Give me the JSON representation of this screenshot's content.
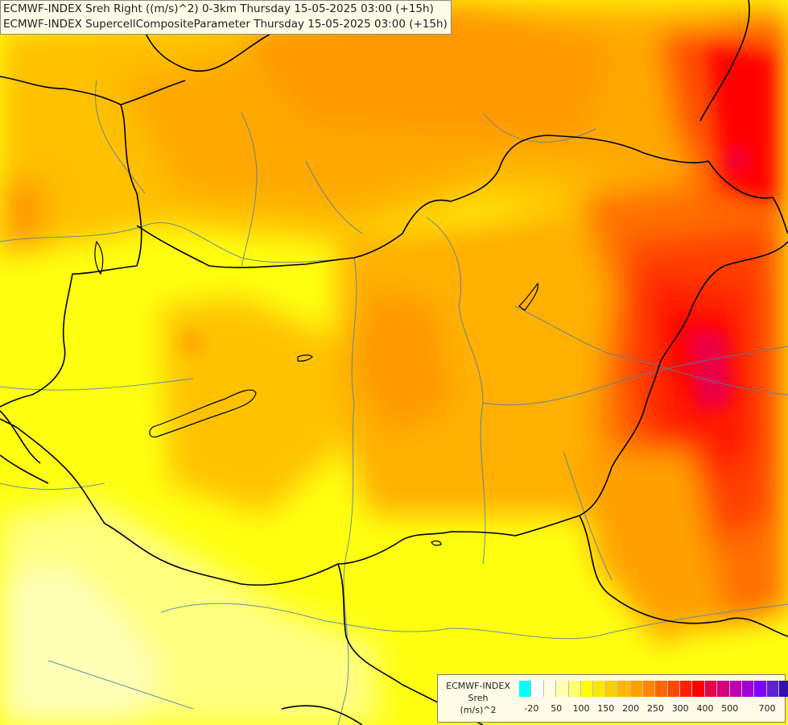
{
  "title_lines": [
    "ECMWF-INDEX Sreh Right ((m/s)^2) 0-3km Thursday 15-05-2025 03:00 (+15h)",
    "ECMWF-INDEX SupercellCompositeParameter Thursday 15-05-2025 03:00 (+15h)"
  ],
  "legend": {
    "product_line1": "ECMWF-INDEX",
    "product_line2": "Sreh",
    "unit": "(m/s)^2",
    "swatch_colors": [
      "#00ffff",
      "#ffffff",
      "#ffffe0",
      "#ffffb0",
      "#ffff70",
      "#ffff00",
      "#ffe800",
      "#ffd000",
      "#ffb800",
      "#ffa000",
      "#ff8800",
      "#ff6800",
      "#ff4800",
      "#ff2000",
      "#ff0000",
      "#e8004a",
      "#d8007a",
      "#c000b0",
      "#a000d8",
      "#8000ff",
      "#6020d0",
      "#3010b0",
      "#000080"
    ],
    "tick_labels": [
      "-20",
      "50",
      "100",
      "150",
      "200",
      "250",
      "300",
      "400",
      "500",
      "700"
    ]
  }
}
